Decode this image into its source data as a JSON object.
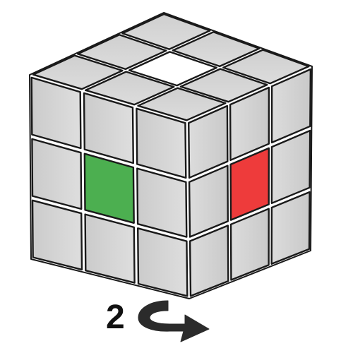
{
  "cube": {
    "sticker_color": "#d9d9d9",
    "edge_color": "#1a1a1a",
    "top_face": [
      [
        "gray",
        "gray",
        "gray"
      ],
      [
        "gray",
        "white",
        "gray"
      ],
      [
        "gray",
        "gray",
        "gray"
      ]
    ],
    "front_face": [
      [
        "gray",
        "gray",
        "gray"
      ],
      [
        "gray",
        "green",
        "gray"
      ],
      [
        "gray",
        "gray",
        "gray"
      ]
    ],
    "right_face": [
      [
        "gray",
        "gray",
        "gray"
      ],
      [
        "gray",
        "red",
        "gray"
      ],
      [
        "gray",
        "gray",
        "gray"
      ]
    ],
    "palette": {
      "gray": "#d9d9d9",
      "white": "#ffffff",
      "green": "#4caf50",
      "red": "#ee3b3b"
    }
  },
  "move": {
    "step_label": "2",
    "arrow_icon": "counterclockwise-turn-arrow-icon",
    "arrow_color": "#2b2b2b"
  }
}
